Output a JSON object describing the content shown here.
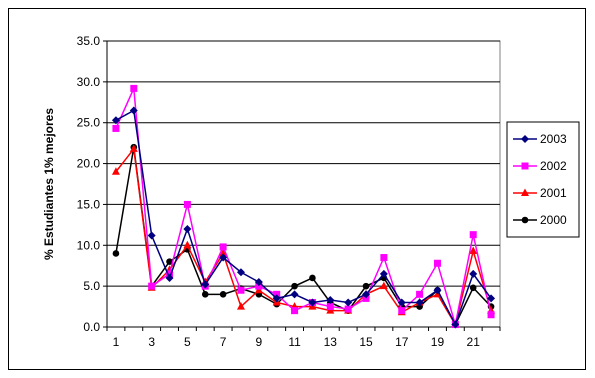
{
  "chart_data": {
    "type": "line",
    "title": "",
    "xlabel": "",
    "ylabel": "% Estudiantes 1% mejores",
    "x": [
      1,
      2,
      3,
      4,
      5,
      6,
      7,
      8,
      9,
      10,
      11,
      12,
      13,
      14,
      15,
      16,
      17,
      18,
      19,
      20,
      21,
      22
    ],
    "x_tick_labels": [
      "1",
      "3",
      "5",
      "7",
      "9",
      "11",
      "13",
      "15",
      "17",
      "19",
      "21"
    ],
    "y_tick_labels": [
      "0.0",
      "5.0",
      "10.0",
      "15.0",
      "20.0",
      "25.0",
      "30.0",
      "35.0"
    ],
    "ylim": [
      0,
      35
    ],
    "grid": true,
    "legend_position": "right",
    "series": [
      {
        "name": "2003",
        "color": "#000080",
        "marker": "diamond",
        "values": [
          25.3,
          26.5,
          11.2,
          6.0,
          12.0,
          5.2,
          8.5,
          6.7,
          5.5,
          3.5,
          4.0,
          3.0,
          3.3,
          3.0,
          4.0,
          6.5,
          3.0,
          3.0,
          4.5,
          0.3,
          6.5,
          3.5
        ]
      },
      {
        "name": "2002",
        "color": "#ff00ff",
        "marker": "square",
        "values": [
          24.3,
          29.2,
          5.0,
          6.5,
          15.0,
          5.0,
          9.8,
          4.5,
          5.0,
          4.0,
          2.0,
          3.0,
          2.5,
          2.2,
          3.5,
          8.5,
          2.0,
          4.0,
          7.8,
          0.3,
          11.3,
          1.5
        ]
      },
      {
        "name": "2001",
        "color": "#ff0000",
        "marker": "triangle",
        "values": [
          19.0,
          21.8,
          4.8,
          7.0,
          10.0,
          5.5,
          9.0,
          2.5,
          4.5,
          3.0,
          2.5,
          2.5,
          2.0,
          2.0,
          4.0,
          5.0,
          1.8,
          3.0,
          4.0,
          0.3,
          9.3,
          2.0
        ]
      },
      {
        "name": "2000",
        "color": "#000000",
        "marker": "circle",
        "values": [
          9.0,
          22.0,
          5.0,
          8.0,
          9.5,
          4.0,
          4.0,
          4.7,
          4.0,
          2.8,
          5.0,
          6.0,
          3.0,
          2.0,
          5.0,
          6.0,
          2.5,
          2.5,
          4.5,
          0.3,
          4.8,
          2.5
        ]
      }
    ]
  }
}
